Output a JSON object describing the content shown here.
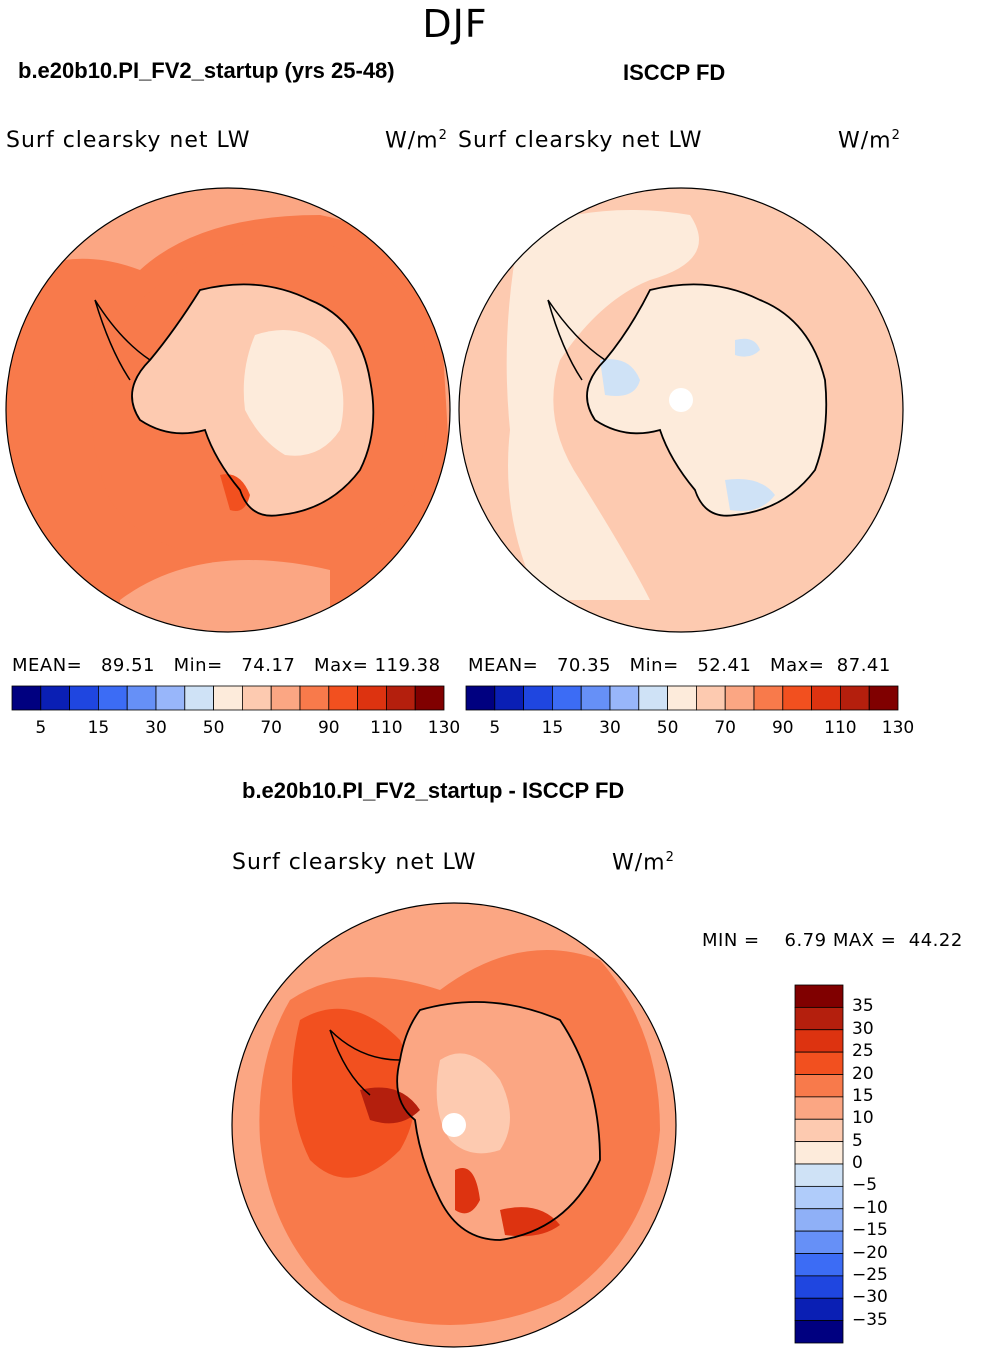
{
  "season": "DJF",
  "panels": {
    "left": {
      "title": "b.e20b10.PI_FV2_startup (yrs 25-48)",
      "variable": "Surf clearsky net LW",
      "units_base": "W/m",
      "units_exp": "2",
      "stats": {
        "mean_label": "MEAN=",
        "mean": "89.51",
        "min_label": "Min=",
        "min": "74.17",
        "max_label": "Max=",
        "max": "119.38"
      }
    },
    "right": {
      "title": "ISCCP FD",
      "variable": "Surf clearsky net LW",
      "units_base": "W/m",
      "units_exp": "2",
      "stats": {
        "mean_label": "MEAN=",
        "mean": "70.35",
        "min_label": "Min=",
        "min": "52.41",
        "max_label": "Max=",
        "max": "87.41"
      }
    },
    "diff": {
      "title": "b.e20b10.PI_FV2_startup - ISCCP FD",
      "variable": "Surf clearsky net LW",
      "units_base": "W/m",
      "units_exp": "2",
      "stats": {
        "min_label": "MIN =",
        "min": "6.79",
        "max_label": "MAX =",
        "max": "44.22"
      }
    }
  },
  "colorbars": {
    "top_colors": [
      "#000080",
      "#0a1fb4",
      "#1f46e0",
      "#3c6cf5",
      "#6690f7",
      "#98b6fa",
      "#cfe2f6",
      "#fdebdb",
      "#fdcab0",
      "#fba683",
      "#f87a4b",
      "#f2501f",
      "#dd3310",
      "#b41f0d",
      "#800000"
    ],
    "top_ticks": [
      "5",
      "15",
      "30",
      "50",
      "70",
      "90",
      "110",
      "130"
    ],
    "diff_colors": [
      "#800000",
      "#b41f0d",
      "#dd3310",
      "#f2501f",
      "#f87a4b",
      "#fba683",
      "#fdcab0",
      "#fdebdb",
      "#cfe2f6",
      "#b0ccfa",
      "#8fb0f7",
      "#6690f7",
      "#3c6cf5",
      "#1f46e0",
      "#0a1fb4",
      "#000080"
    ],
    "diff_ticks": [
      "35",
      "30",
      "25",
      "20",
      "15",
      "10",
      "5",
      "0",
      "−5",
      "−10",
      "−15",
      "−20",
      "−25",
      "−30",
      "−35"
    ]
  },
  "chart_data": [
    {
      "type": "heatmap",
      "title": "b.e20b10.PI_FV2_startup (yrs 25-48)",
      "variable": "Surf clearsky net LW",
      "units": "W/m2",
      "season": "DJF",
      "projection": "south polar stereographic",
      "mean": 89.51,
      "min": 74.17,
      "max": 119.38,
      "contour_levels": [
        5,
        10,
        15,
        20,
        30,
        40,
        50,
        60,
        70,
        80,
        90,
        100,
        110,
        120,
        130
      ]
    },
    {
      "type": "heatmap",
      "title": "ISCCP FD",
      "variable": "Surf clearsky net LW",
      "units": "W/m2",
      "season": "DJF",
      "projection": "south polar stereographic",
      "mean": 70.35,
      "min": 52.41,
      "max": 87.41,
      "contour_levels": [
        5,
        10,
        15,
        20,
        30,
        40,
        50,
        60,
        70,
        80,
        90,
        100,
        110,
        120,
        130
      ]
    },
    {
      "type": "heatmap",
      "title": "b.e20b10.PI_FV2_startup - ISCCP FD",
      "variable": "Surf clearsky net LW",
      "units": "W/m2",
      "season": "DJF",
      "projection": "south polar stereographic",
      "min": 6.79,
      "max": 44.22,
      "contour_levels": [
        -35,
        -30,
        -25,
        -20,
        -15,
        -10,
        -5,
        0,
        5,
        10,
        15,
        20,
        25,
        30,
        35
      ]
    }
  ]
}
